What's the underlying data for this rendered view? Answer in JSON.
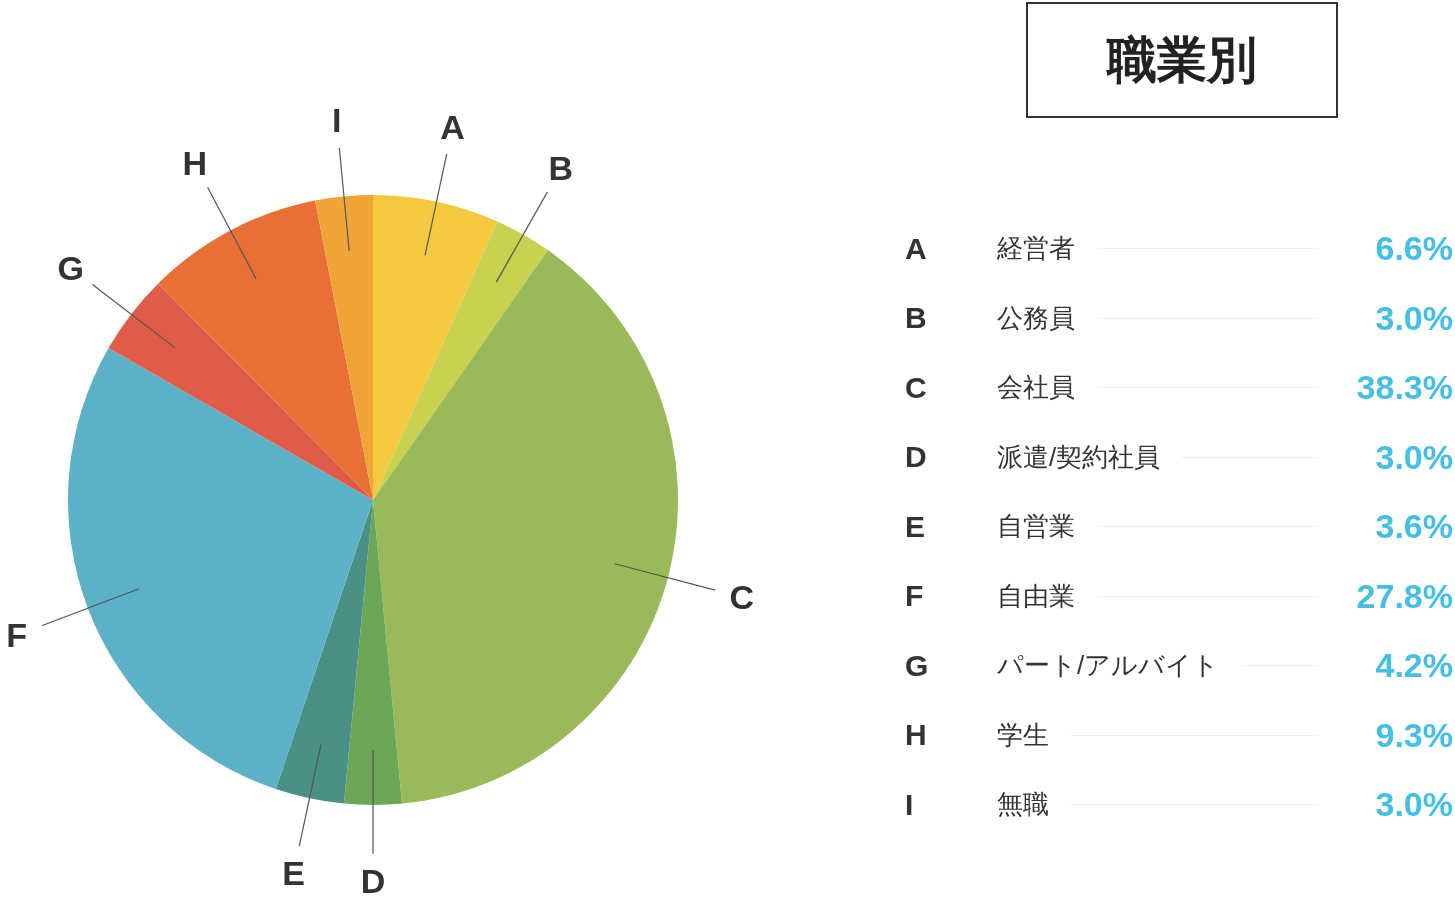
{
  "chart_data": {
    "type": "pie",
    "title": "職業別",
    "categories": [
      "A",
      "B",
      "C",
      "D",
      "E",
      "F",
      "G",
      "H",
      "I"
    ],
    "values": [
      6.6,
      3.0,
      38.3,
      3.0,
      3.6,
      27.8,
      4.2,
      9.3,
      3.0
    ],
    "colors": [
      "#f5c93e",
      "#cad04f",
      "#9aba59",
      "#6ca757",
      "#4a9087",
      "#5db1c7",
      "#e05c48",
      "#e86f35",
      "#eea536"
    ],
    "annotations": [
      {
        "text": "経営者",
        "x": "A"
      },
      {
        "text": "6.6%",
        "x": "A"
      },
      {
        "text": "公務員",
        "x": "B"
      },
      {
        "text": "3.0%",
        "x": "B"
      },
      {
        "text": "会社員",
        "x": "C"
      },
      {
        "text": "38.3%",
        "x": "C"
      },
      {
        "text": "派遣/契約社員",
        "x": "D"
      },
      {
        "text": "3.0%",
        "x": "D"
      },
      {
        "text": "自営業",
        "x": "E"
      },
      {
        "text": "3.6%",
        "x": "E"
      },
      {
        "text": "自由業",
        "x": "F"
      },
      {
        "text": "27.8%",
        "x": "F"
      },
      {
        "text": "パート/アルバイト",
        "x": "G"
      },
      {
        "text": "4.2%",
        "x": "G"
      },
      {
        "text": "学生",
        "x": "H"
      },
      {
        "text": "9.3%",
        "x": "H"
      },
      {
        "text": "無職",
        "x": "I"
      },
      {
        "text": "3.0%",
        "x": "I"
      }
    ]
  }
}
